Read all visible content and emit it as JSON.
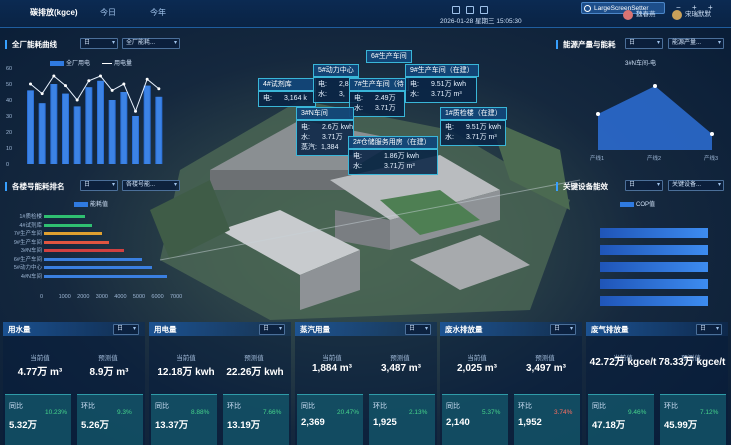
{
  "header": {
    "unit_tab": "碳排放(kgce)",
    "tab_day": "今日",
    "tab_year": "今年",
    "datetime": "2026-01-28 星期三 15:05:30",
    "screen_setter": "LargeScreenSetter",
    "user1": "魏春燕",
    "user2": "宋瑞默默",
    "win_min": "−",
    "win_max": "+",
    "win_close": "+"
  },
  "left_top": {
    "title": "全厂能耗曲线",
    "sel1": "日",
    "sel2": "全厂能耗...",
    "legend1": "全厂用电",
    "legend2": "用电量",
    "y_ticks": [
      "60",
      "50",
      "40",
      "30",
      "20",
      "10",
      "0"
    ]
  },
  "left_mid": {
    "title": "各楼号能耗排名",
    "sel1": "日",
    "sel2": "各楼号能...",
    "legend": "能耗值",
    "x_ticks": [
      "0",
      "1000",
      "2000",
      "3000",
      "4000",
      "5000",
      "6000",
      "7000"
    ]
  },
  "right_top": {
    "title": "能源产量与能耗",
    "sel1": "日",
    "sel2": "能源产量...",
    "legend": "3#N车间-电",
    "x_ticks": [
      "产线1",
      "产线2",
      "产线3"
    ]
  },
  "right_mid": {
    "title": "关键设备能效",
    "sel1": "日",
    "sel2": "关键设备...",
    "legend": "COP值"
  },
  "popups": {
    "p1": {
      "name": "4#试剂库",
      "r1l": "电:",
      "r1v": "3,164 k"
    },
    "p2": {
      "name": "5#动力中心",
      "r1l": "电:",
      "r1v": "2,8",
      "r2l": "水:",
      "r2v": "3,"
    },
    "p3": {
      "name": "6#生产车间",
      "r1l": "电:",
      "r1v": "",
      "r2l": "水:",
      "r2v": ""
    },
    "p4": {
      "name": "7#生产车间（待",
      "r1l": "电:",
      "r1v": "2.49万",
      "r2l": "水:",
      "r2v": "3.71万"
    },
    "p5": {
      "name": "9#生产车间（在建）",
      "r1l": "电:",
      "r1v": "9.51万 kwh",
      "r2l": "水:",
      "r2v": "3.71万 m³"
    },
    "p6": {
      "name": "3#N车间",
      "r1l": "电:",
      "r1v": "2.6万 kwh",
      "r2l": "水:",
      "r2v": "3.71万",
      "r3l": "蒸汽:",
      "r3v": "1,384"
    },
    "p7": {
      "name": "2#仓储服务用房（在建）",
      "r1l": "电:",
      "r1v": "1.86万 kwh",
      "r2l": "水:",
      "r2v": "3.71万 m³"
    },
    "p8": {
      "name": "1#质检楼（在建）",
      "r1l": "电:",
      "r1v": "9.51万 kwh",
      "r2l": "水:",
      "r2v": "3.71万 m³"
    }
  },
  "kpi": [
    {
      "title": "用水量",
      "sel": "日",
      "l1": "当前值",
      "v1": "4.77万 m³",
      "l2": "预测值",
      "v2": "8.9万 m³",
      "c1n": "同比",
      "c1v": "5.32万",
      "c1p": "10.23%",
      "c1red": false,
      "c2n": "环比",
      "c2v": "5.26万",
      "c2p": "9.3%",
      "c2red": false
    },
    {
      "title": "用电量",
      "sel": "日",
      "l1": "当前值",
      "v1": "12.18万 kwh",
      "l2": "预测值",
      "v2": "22.26万 kwh",
      "c1n": "同比",
      "c1v": "13.37万",
      "c1p": "8.88%",
      "c1red": false,
      "c2n": "环比",
      "c2v": "13.19万",
      "c2p": "7.66%",
      "c2red": false
    },
    {
      "title": "蒸汽用量",
      "sel": "日",
      "l1": "当前值",
      "v1": "1,884 m³",
      "l2": "预测值",
      "v2": "3,487 m³",
      "c1n": "同比",
      "c1v": "2,369",
      "c1p": "20.47%",
      "c1red": false,
      "c2n": "环比",
      "c2v": "1,925",
      "c2p": "2.13%",
      "c2red": false
    },
    {
      "title": "废水排放量",
      "sel": "日",
      "l1": "当前值",
      "v1": "2,025 m³",
      "l2": "预测值",
      "v2": "3,497 m³",
      "c1n": "同比",
      "c1v": "2,140",
      "c1p": "5.37%",
      "c1red": false,
      "c2n": "环比",
      "c2v": "1,952",
      "c2p": "3.74%",
      "c2red": true
    },
    {
      "title": "废气排放量",
      "sel": "日",
      "l1": "当前值",
      "v1": "42.72万 kgce/t",
      "l2": "预测值",
      "v2": "78.33万 kgce/t",
      "c1n": "同比",
      "c1v": "47.18万",
      "c1p": "9.46%",
      "c1red": false,
      "c2n": "环比",
      "c2v": "45.99万",
      "c2p": "7.12%",
      "c2red": false
    }
  ],
  "chart_data": [
    {
      "type": "bar",
      "title": "全厂能耗曲线",
      "series": [
        {
          "name": "全厂用电",
          "values": [
            46,
            38,
            50,
            44,
            36,
            48,
            52,
            40,
            45,
            30,
            49,
            42
          ]
        },
        {
          "name": "用电量",
          "values": [
            50,
            44,
            55,
            49,
            40,
            52,
            55,
            46,
            50,
            33,
            53,
            47
          ]
        }
      ],
      "ylim": [
        0,
        60
      ]
    },
    {
      "type": "bar",
      "title": "各楼号能耗排名",
      "categories": [
        "1#质检楼",
        "4#试剂库",
        "7#生产车间",
        "9#生产车间",
        "3#N车间",
        "6#生产车间",
        "5#动力中心",
        "4#N车间"
      ],
      "values": [
        2200,
        2600,
        3100,
        3500,
        4300,
        5300,
        5800,
        6600
      ],
      "xlim": [
        0,
        7000
      ],
      "orientation": "horizontal"
    },
    {
      "type": "area",
      "title": "能源产量与能耗",
      "categories": [
        "产线1",
        "产线2",
        "产线3"
      ],
      "series": [
        {
          "name": "3#N车间-电",
          "values": [
            45,
            80,
            20
          ]
        }
      ],
      "ylim": [
        0,
        100
      ]
    },
    {
      "type": "bar",
      "title": "关键设备能效",
      "series": [
        {
          "name": "COP值",
          "values": [
            5.8,
            5.8,
            5.8,
            5.8,
            5.8
          ]
        }
      ],
      "orientation": "horizontal",
      "xlim": [
        0,
        6
      ]
    }
  ]
}
